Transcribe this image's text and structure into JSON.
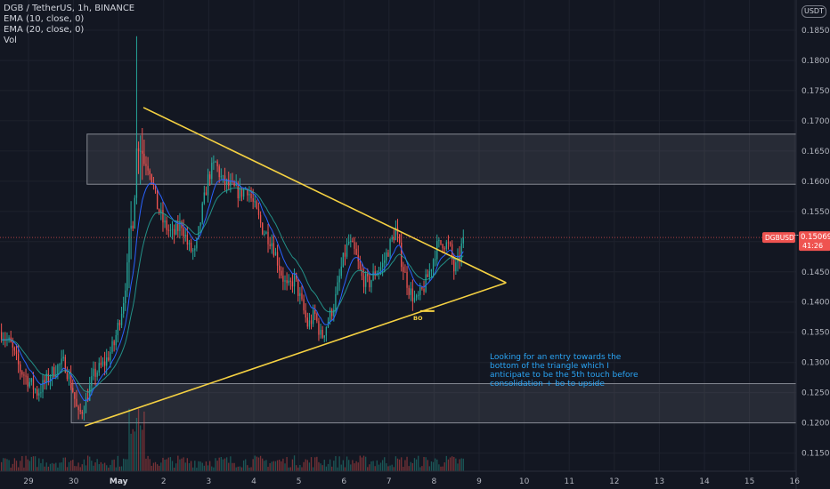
{
  "legend": {
    "title": "DGB / TetherUS, 1h, BINANCE",
    "ema1": "EMA (10, close, 0)",
    "ema2": "EMA (20, close, 0)",
    "vol": "Vol"
  },
  "currency": "USDT",
  "price_label": {
    "symbol": "DGBUSDT",
    "price": "0.15069",
    "countdown": "41:26"
  },
  "annotations": {
    "bo": "BO",
    "note": "Looking for an entry towards the bottom of the triangle which I anticipate to be the 5th touch before consolidation + bo to upside"
  },
  "colors": {
    "background": "#131722",
    "up": "#26a69a",
    "down": "#ef5350",
    "trendline": "#f5d142",
    "zone": "#9598a1",
    "note": "#2aa4f4"
  },
  "chart_data": {
    "type": "candlestick",
    "y_ticks": [
      "0.11500",
      "0.12000",
      "0.12500",
      "0.13000",
      "0.13500",
      "0.14000",
      "0.14500",
      "0.15000",
      "0.15500",
      "0.16000",
      "0.16500",
      "0.17000",
      "0.17500",
      "0.18000",
      "0.18500"
    ],
    "ylim": [
      0.112,
      0.19
    ],
    "x_ticks": [
      {
        "label": "29",
        "x": 0
      },
      {
        "label": "30",
        "x": 1
      },
      {
        "label": "May",
        "x": 2
      },
      {
        "label": "2",
        "x": 3
      },
      {
        "label": "3",
        "x": 4
      },
      {
        "label": "4",
        "x": 5
      },
      {
        "label": "5",
        "x": 6
      },
      {
        "label": "6",
        "x": 7
      },
      {
        "label": "7",
        "x": 8
      },
      {
        "label": "8",
        "x": 9
      },
      {
        "label": "9",
        "x": 10
      },
      {
        "label": "10",
        "x": 11
      },
      {
        "label": "11",
        "x": 12
      },
      {
        "label": "12",
        "x": 13
      },
      {
        "label": "13",
        "x": 14
      },
      {
        "label": "14",
        "x": 15
      },
      {
        "label": "15",
        "x": 16
      },
      {
        "label": "16",
        "x": 17
      }
    ],
    "last_price": 0.15069,
    "resistance_zone": {
      "from_day": 1.3,
      "to_day": 17.4,
      "low": 0.1595,
      "high": 0.1678
    },
    "support_zone": {
      "from_day": 0.95,
      "to_day": 17.4,
      "low": 0.12,
      "high": 0.1265
    },
    "upper_trendline": [
      {
        "day": 2.55,
        "price": 0.1722
      },
      {
        "day": 10.6,
        "price": 0.1432
      }
    ],
    "lower_trendline": [
      {
        "day": 1.25,
        "price": 0.1195
      },
      {
        "day": 10.6,
        "price": 0.1432
      }
    ],
    "bo_marker": {
      "day": 8.85,
      "price": 0.1385
    },
    "candles_per_day": 24,
    "start_day": -0.6,
    "path_keypoints": [
      [
        -0.6,
        0.135
      ],
      [
        -0.4,
        0.133
      ],
      [
        -0.2,
        0.129
      ],
      [
        0.0,
        0.127
      ],
      [
        0.2,
        0.125
      ],
      [
        0.4,
        0.127
      ],
      [
        0.6,
        0.129
      ],
      [
        0.8,
        0.13
      ],
      [
        1.0,
        0.125
      ],
      [
        1.1,
        0.121
      ],
      [
        1.25,
        0.123
      ],
      [
        1.45,
        0.128
      ],
      [
        1.7,
        0.13
      ],
      [
        1.9,
        0.133
      ],
      [
        2.1,
        0.14
      ],
      [
        2.25,
        0.149
      ],
      [
        2.35,
        0.16
      ],
      [
        2.45,
        0.169
      ],
      [
        2.55,
        0.164
      ],
      [
        2.7,
        0.162
      ],
      [
        2.85,
        0.156
      ],
      [
        3.0,
        0.153
      ],
      [
        3.2,
        0.151
      ],
      [
        3.4,
        0.153
      ],
      [
        3.55,
        0.149
      ],
      [
        3.7,
        0.148
      ],
      [
        3.85,
        0.155
      ],
      [
        4.0,
        0.161
      ],
      [
        4.15,
        0.163
      ],
      [
        4.3,
        0.16
      ],
      [
        4.5,
        0.159
      ],
      [
        4.7,
        0.158
      ],
      [
        4.85,
        0.159
      ],
      [
        5.0,
        0.156
      ],
      [
        5.2,
        0.152
      ],
      [
        5.4,
        0.15
      ],
      [
        5.6,
        0.145
      ],
      [
        5.75,
        0.142
      ],
      [
        5.9,
        0.144
      ],
      [
        6.05,
        0.14
      ],
      [
        6.2,
        0.136
      ],
      [
        6.35,
        0.138
      ],
      [
        6.5,
        0.134
      ],
      [
        6.65,
        0.137
      ],
      [
        6.8,
        0.14
      ],
      [
        6.95,
        0.146
      ],
      [
        7.1,
        0.15
      ],
      [
        7.25,
        0.148
      ],
      [
        7.4,
        0.144
      ],
      [
        7.55,
        0.143
      ],
      [
        7.7,
        0.145
      ],
      [
        7.85,
        0.146
      ],
      [
        8.0,
        0.149
      ],
      [
        8.15,
        0.152
      ],
      [
        8.3,
        0.146
      ],
      [
        8.45,
        0.142
      ],
      [
        8.6,
        0.14
      ],
      [
        8.75,
        0.142
      ],
      [
        8.9,
        0.145
      ],
      [
        9.05,
        0.149
      ],
      [
        9.2,
        0.15
      ],
      [
        9.35,
        0.149
      ],
      [
        9.45,
        0.145
      ],
      [
        9.55,
        0.147
      ],
      [
        9.65,
        0.1507
      ]
    ]
  }
}
